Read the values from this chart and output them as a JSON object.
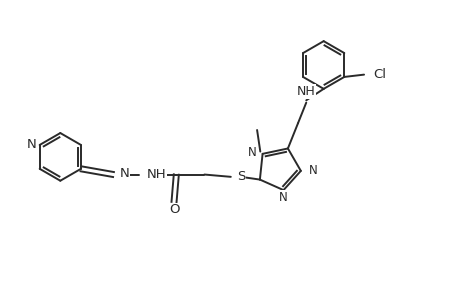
{
  "bg_color": "#ffffff",
  "line_color": "#2a2a2a",
  "line_width": 1.4,
  "font_size": 8.5,
  "figsize": [
    4.6,
    3.0
  ],
  "dpi": 100,
  "xlim": [
    0,
    10.0
  ],
  "ylim": [
    0,
    6.5
  ]
}
